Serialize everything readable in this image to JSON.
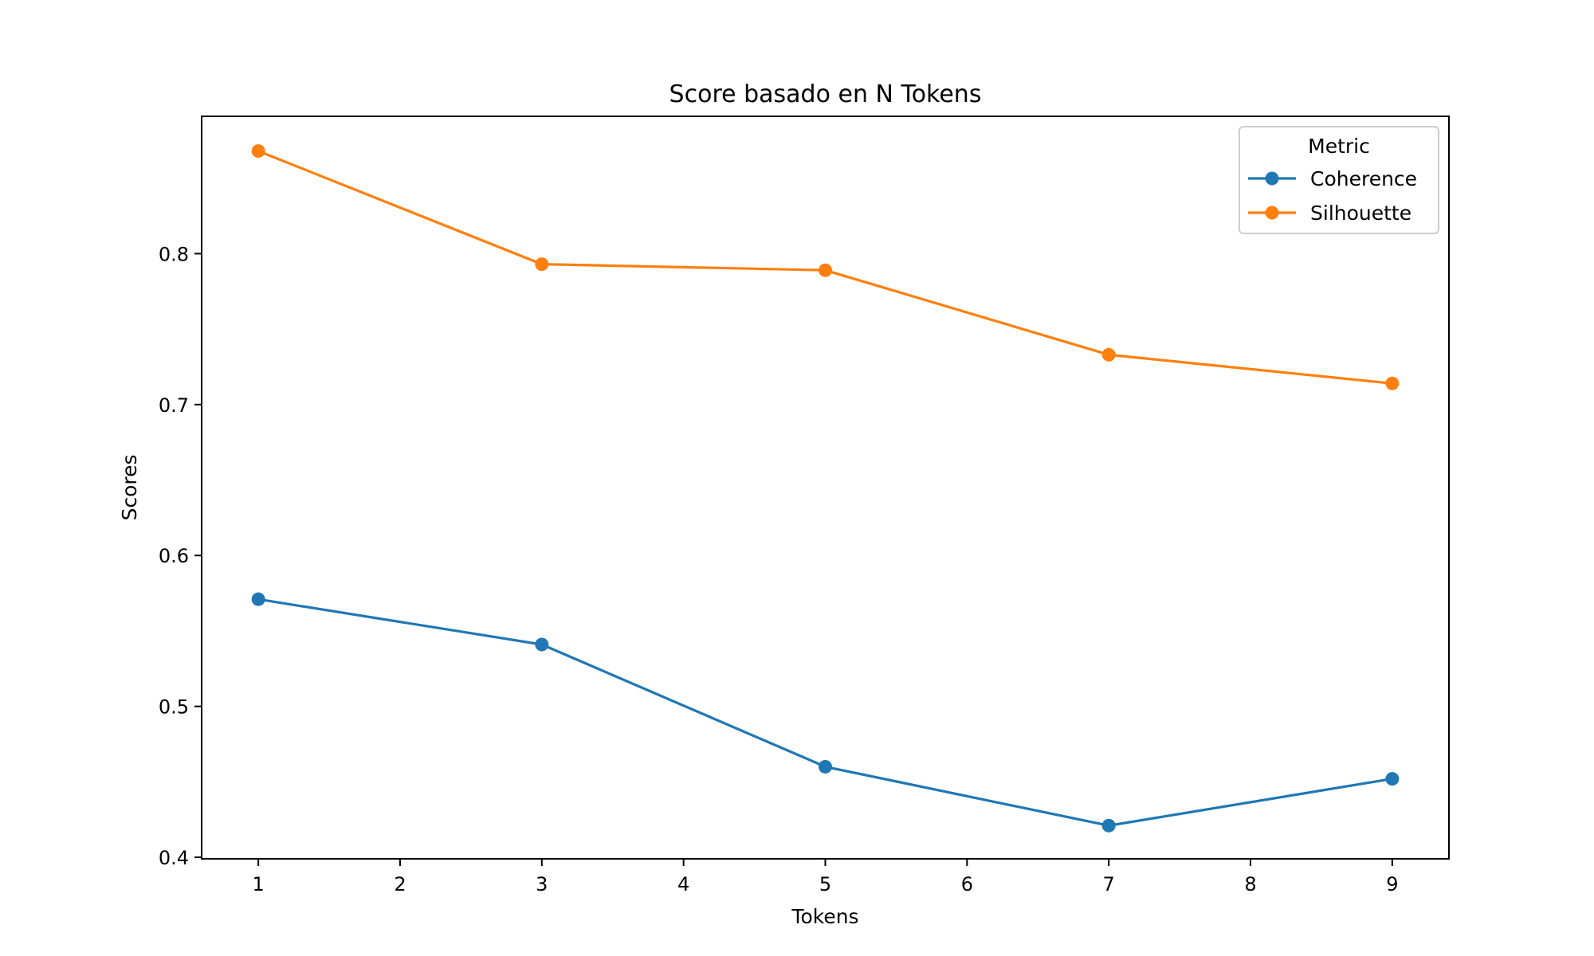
{
  "chart_data": {
    "type": "line",
    "title": "Score basado en N Tokens",
    "xlabel": "Tokens",
    "ylabel": "Scores",
    "x": [
      1,
      3,
      5,
      7,
      9
    ],
    "xlim": [
      0.6,
      9.4
    ],
    "ylim": [
      0.399,
      0.891
    ],
    "xticks": [
      1,
      2,
      3,
      4,
      5,
      6,
      7,
      8,
      9
    ],
    "yticks": [
      0.4,
      0.5,
      0.6,
      0.7,
      0.8
    ],
    "xtick_labels": [
      "1",
      "2",
      "3",
      "4",
      "5",
      "6",
      "7",
      "8",
      "9"
    ],
    "ytick_labels": [
      "0.4",
      "0.5",
      "0.6",
      "0.7",
      "0.8"
    ],
    "grid": false,
    "legend": {
      "title": "Metric",
      "placement": "top-right"
    },
    "series": [
      {
        "name": "Coherence",
        "color": "#1f77b4",
        "values": [
          0.571,
          0.541,
          0.46,
          0.421,
          0.452
        ]
      },
      {
        "name": "Silhouette",
        "color": "#ff7f0e",
        "values": [
          0.868,
          0.793,
          0.789,
          0.733,
          0.714
        ]
      }
    ]
  }
}
